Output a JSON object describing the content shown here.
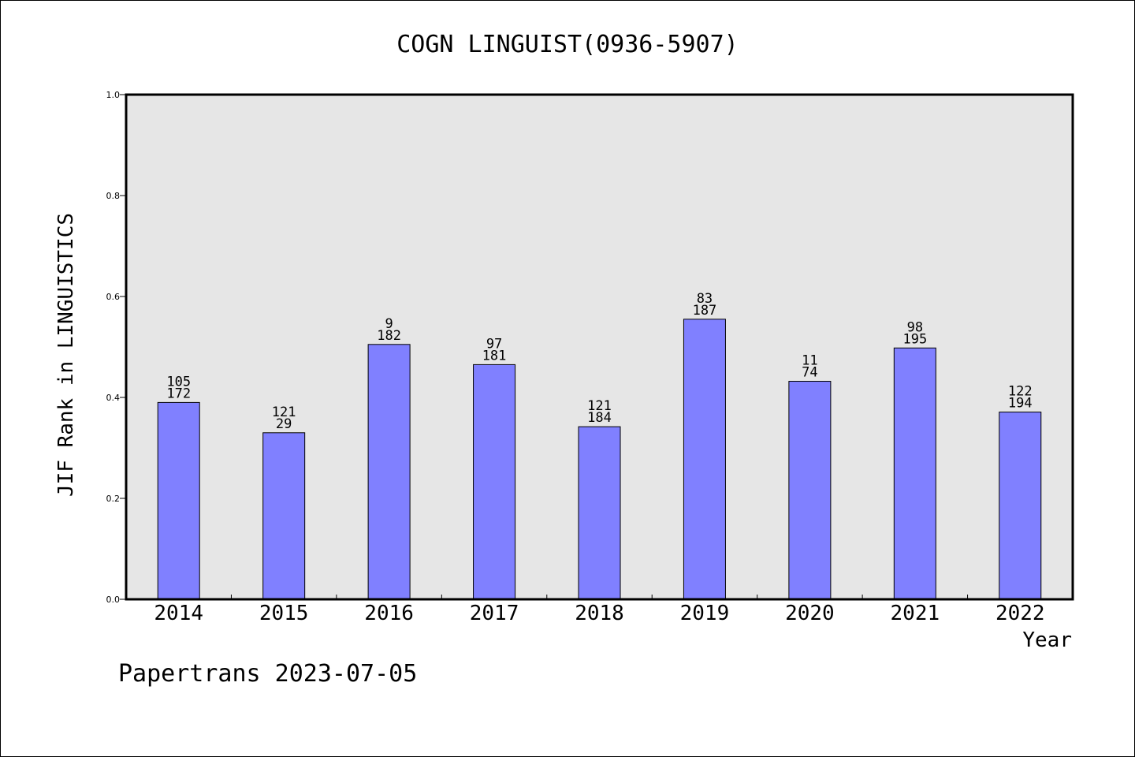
{
  "chart_data": {
    "type": "bar",
    "title": "COGN LINGUIST(0936-5907)",
    "xlabel": "Year",
    "ylabel": "JIF Rank in LINGUISTICS",
    "footer": "Papertrans 2023-07-05",
    "ylim": [
      0,
      1.0
    ],
    "yticks": [
      "0.0",
      "0.2",
      "0.4",
      "0.6",
      "0.8",
      "1.0"
    ],
    "categories": [
      "2014",
      "2015",
      "2016",
      "2017",
      "2018",
      "2019",
      "2020",
      "2021",
      "2022"
    ],
    "values": [
      0.39,
      0.33,
      0.505,
      0.465,
      0.342,
      0.555,
      0.432,
      0.498,
      0.371
    ],
    "label_top": [
      "105",
      "121",
      "9",
      "97",
      "121",
      "83",
      "11",
      "98",
      "122"
    ],
    "label_bottom": [
      "172",
      "29",
      "182",
      "181",
      "184",
      "187",
      "74",
      "195",
      "194"
    ],
    "colors": {
      "bar": "#8080ff",
      "plot_background": "#e6e6e6",
      "text": "#000000"
    },
    "grid": false
  }
}
